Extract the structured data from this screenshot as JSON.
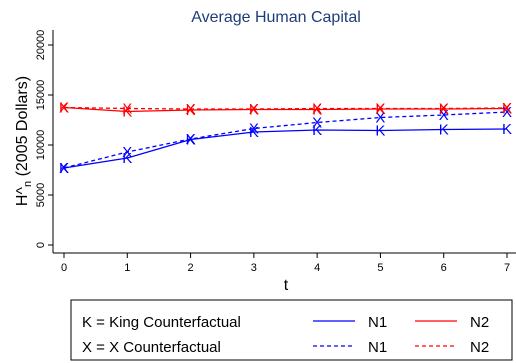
{
  "chart_data": {
    "type": "line",
    "title": "Average Human Capital",
    "xlabel": "t",
    "ylabel": "H^n (2005 Dollars)",
    "x": [
      0,
      1,
      2,
      3,
      4,
      5,
      6,
      7
    ],
    "xlim": [
      0,
      7
    ],
    "ylim": [
      0,
      20000
    ],
    "yticks": [
      0,
      5000,
      10000,
      15000,
      20000
    ],
    "grid": false,
    "series": [
      {
        "name": "N1",
        "counterfactual": "King",
        "marker": "K",
        "color": "#0000ff",
        "dash": "solid",
        "values": [
          7700,
          8700,
          10550,
          11300,
          11500,
          11450,
          11550,
          11600
        ]
      },
      {
        "name": "N2",
        "counterfactual": "King",
        "marker": "K",
        "color": "#ff0000",
        "dash": "solid",
        "values": [
          13750,
          13350,
          13500,
          13550,
          13550,
          13600,
          13600,
          13650
        ]
      },
      {
        "name": "N1",
        "counterfactual": "X",
        "marker": "X",
        "color": "#0000ff",
        "dash": "dashed",
        "values": [
          7700,
          9300,
          10600,
          11650,
          12250,
          12750,
          13000,
          13300
        ]
      },
      {
        "name": "N2",
        "counterfactual": "X",
        "marker": "X",
        "color": "#ff0000",
        "dash": "dashed",
        "values": [
          13750,
          13650,
          13600,
          13600,
          13650,
          13650,
          13650,
          13700
        ]
      }
    ],
    "legend": {
      "placement": "bottom",
      "rows": [
        {
          "key_text": "K = King Counterfactual",
          "entries": [
            "N1",
            "N2"
          ],
          "dash": "solid"
        },
        {
          "key_text": "X = X Counterfactual",
          "entries": [
            "N1",
            "N2"
          ],
          "dash": "dashed"
        }
      ]
    }
  }
}
